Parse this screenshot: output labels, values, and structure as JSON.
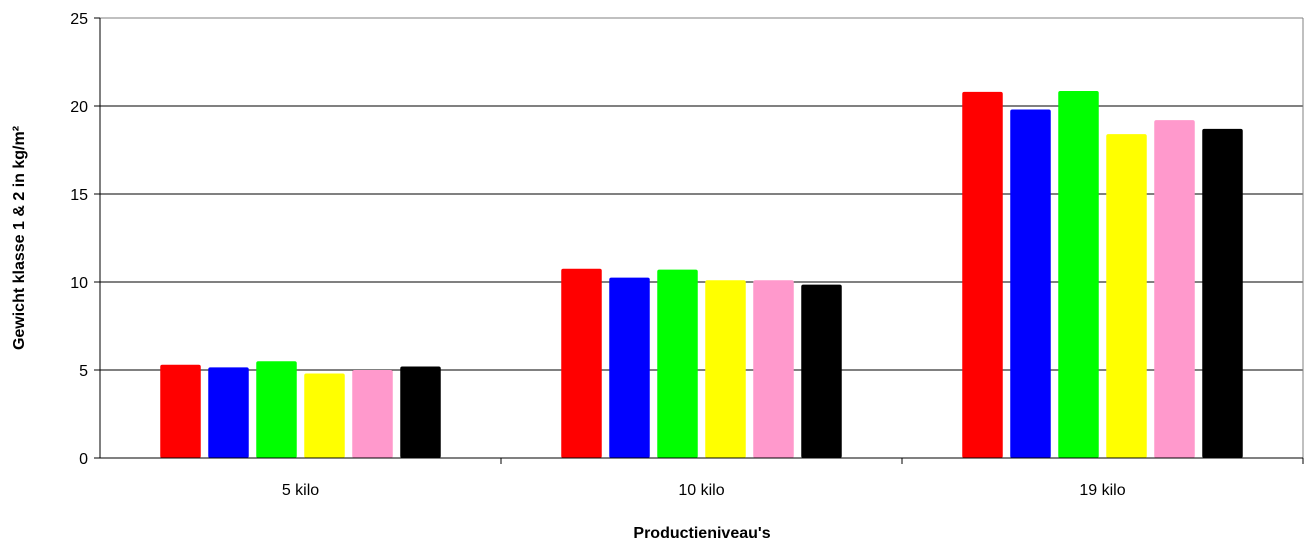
{
  "chart_data": {
    "type": "bar",
    "categories": [
      "5 kilo",
      "10 kilo",
      "19 kilo"
    ],
    "series": [
      {
        "color": "#ff0000",
        "values": [
          5.3,
          10.75,
          20.8
        ]
      },
      {
        "color": "#0000ff",
        "values": [
          5.15,
          10.25,
          19.8
        ]
      },
      {
        "color": "#00ff00",
        "values": [
          5.5,
          10.7,
          20.85
        ]
      },
      {
        "color": "#ffff00",
        "values": [
          4.8,
          10.1,
          18.4
        ]
      },
      {
        "color": "#ff99cc",
        "values": [
          5.0,
          10.1,
          19.2
        ]
      },
      {
        "color": "#000000",
        "values": [
          5.2,
          9.85,
          18.7
        ]
      }
    ],
    "title": "",
    "xlabel": "Productieniveau's",
    "ylabel": "Gewicht klasse 1 & 2 in kg/m²",
    "ylim": [
      0,
      25
    ],
    "yticks": [
      0,
      5,
      10,
      15,
      20,
      25
    ],
    "grid": true,
    "legend": "none"
  }
}
